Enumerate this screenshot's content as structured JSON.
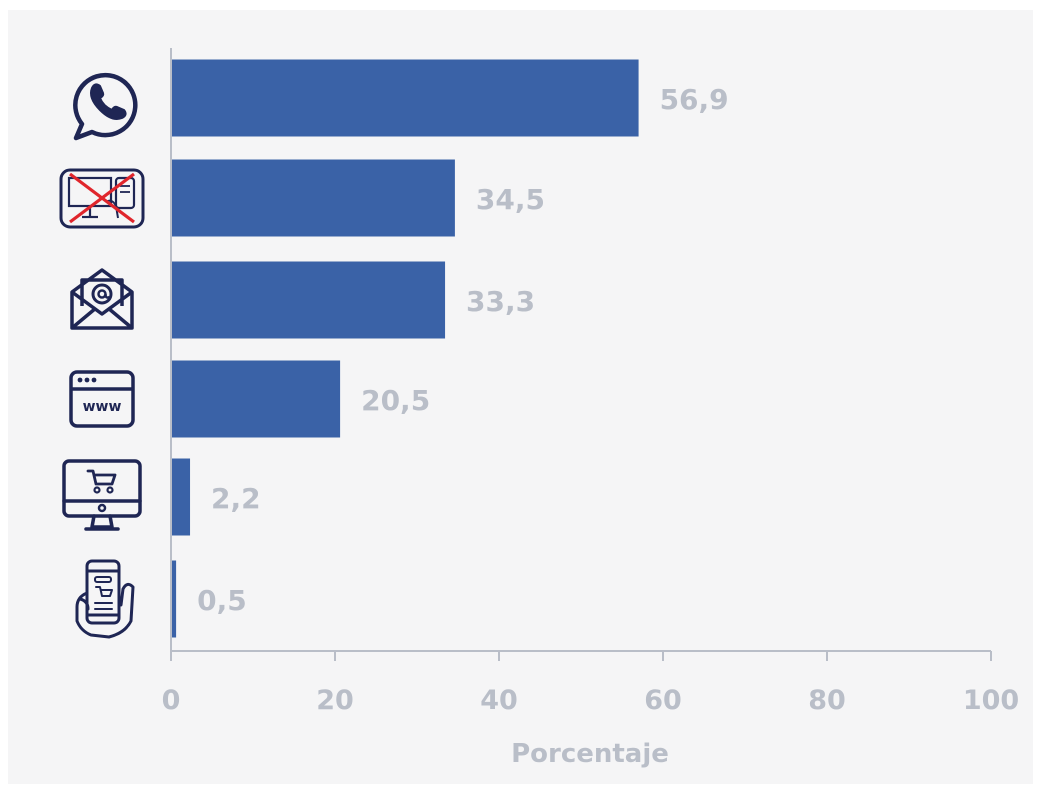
{
  "colors": {
    "background": "#f5f5f6",
    "bar": "#3a62a7",
    "axis": "#b9bec8",
    "text": "#b9bec8",
    "icon": "#1f2654",
    "cross": "#e0262c"
  },
  "chart_data": {
    "type": "bar",
    "orientation": "horizontal",
    "categories": [
      "whatsapp-icon",
      "no-computer-icon",
      "email-icon",
      "website-icon",
      "online-shop-icon",
      "mobile-shopping-icon"
    ],
    "values": [
      56.9,
      34.5,
      33.3,
      20.5,
      2.2,
      0.5
    ],
    "value_labels": [
      "56,9",
      "34,5",
      "33,3",
      "20,5",
      "2,2",
      "0,5"
    ],
    "xlabel": "Porcentaje",
    "ylabel": "",
    "title": "",
    "xlim": [
      0,
      100
    ],
    "xticks": [
      "0",
      "20",
      "40",
      "60",
      "80",
      "100"
    ],
    "grid": false,
    "legend": "none"
  }
}
